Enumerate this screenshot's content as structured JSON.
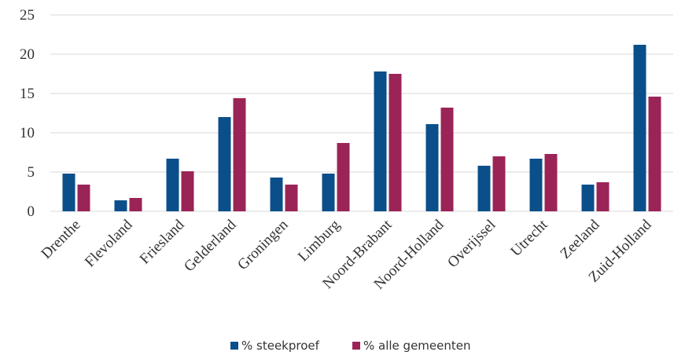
{
  "chart_data": {
    "type": "bar",
    "categories": [
      "Drenthe",
      "Flevoland",
      "Friesland",
      "Gelderland",
      "Groningen",
      "Limburg",
      "Noord-Brabant",
      "Noord-Holland",
      "Overijssel",
      "Utrecht",
      "Zeeland",
      "Zuid-Holland"
    ],
    "series": [
      {
        "name": "% steekproef",
        "color": "#0b4f8a",
        "values": [
          4.8,
          1.4,
          6.7,
          12.0,
          4.3,
          4.8,
          17.8,
          11.1,
          5.8,
          6.7,
          3.4,
          21.2
        ]
      },
      {
        "name": "% alle gemeenten",
        "color": "#9b2457",
        "values": [
          3.4,
          1.7,
          5.1,
          14.4,
          3.4,
          8.7,
          17.5,
          13.2,
          7.0,
          7.3,
          3.7,
          14.6
        ]
      }
    ],
    "title": "",
    "xlabel": "",
    "ylabel": "",
    "ylim": [
      0,
      25
    ],
    "yticks": [
      "0",
      "5",
      "10",
      "15",
      "20",
      "25"
    ],
    "grid": true,
    "legend_position": "bottom"
  }
}
